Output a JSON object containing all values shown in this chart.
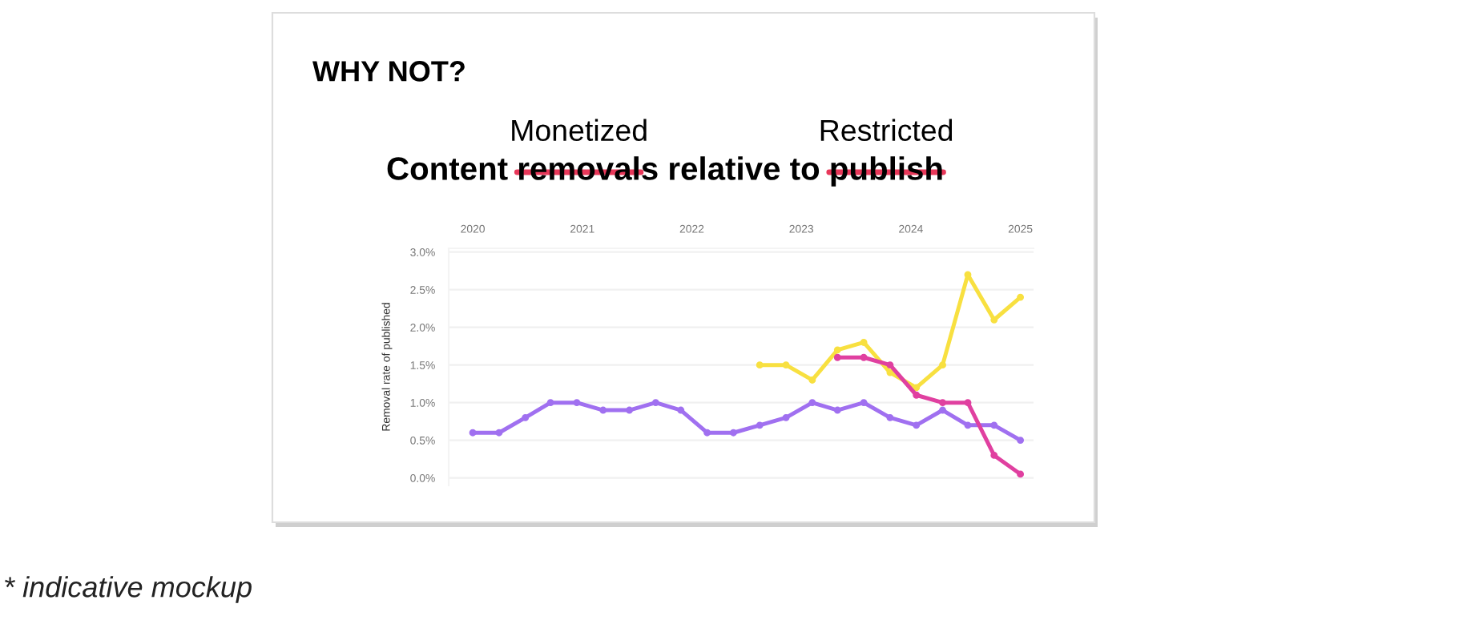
{
  "chart_data": {
    "type": "line",
    "title": "Content removals relative to publish",
    "subtitle": "WHY NOT?",
    "ylabel": "Removal rate of published",
    "annotations": [
      "Monetized",
      "Restricted",
      "* indicative mockup"
    ],
    "x": [
      2020.0,
      2020.24,
      2020.48,
      2020.71,
      2020.95,
      2021.19,
      2021.43,
      2021.67,
      2021.9,
      2022.14,
      2022.38,
      2022.62,
      2022.86,
      2023.1,
      2023.33,
      2023.57,
      2023.81,
      2024.05,
      2024.29,
      2024.52,
      2024.76,
      2025.0
    ],
    "series": [
      {
        "color": "#a070f0",
        "values": [
          0.6,
          0.6,
          0.8,
          1.0,
          1.0,
          0.9,
          0.9,
          1.0,
          0.9,
          0.6,
          0.6,
          0.7,
          0.8,
          1.0,
          0.9,
          1.0,
          0.8,
          0.7,
          0.9,
          0.7,
          0.7,
          0.5
        ]
      },
      {
        "color": "#f8e040",
        "values": [
          null,
          null,
          null,
          null,
          null,
          null,
          null,
          null,
          null,
          null,
          null,
          1.5,
          1.5,
          1.3,
          1.7,
          1.8,
          1.4,
          1.2,
          1.5,
          2.7,
          2.1,
          2.4
        ]
      },
      {
        "color": "#e040a0",
        "values": [
          null,
          null,
          null,
          null,
          null,
          null,
          null,
          null,
          null,
          null,
          null,
          null,
          null,
          null,
          1.6,
          1.6,
          1.5,
          1.1,
          1.0,
          1.0,
          0.3,
          0.05
        ]
      }
    ],
    "xlim": [
      2019.78,
      2025.12
    ],
    "xticks": [
      2020,
      2021,
      2022,
      2023,
      2024,
      2025
    ],
    "ylim": [
      -0.1,
      3.05
    ],
    "yticks": [
      {
        "value": 0,
        "label": "0.0%"
      },
      {
        "value": 0.5,
        "label": "0.5%"
      },
      {
        "value": 1.0,
        "label": "1.0%"
      },
      {
        "value": 1.5,
        "label": "1.5%"
      },
      {
        "value": 2.0,
        "label": "2.0%"
      },
      {
        "value": 2.5,
        "label": "2.5%"
      },
      {
        "value": 3.0,
        "label": "3.0%"
      }
    ],
    "grid": "y",
    "marker": "circle",
    "line_style": "solid"
  }
}
